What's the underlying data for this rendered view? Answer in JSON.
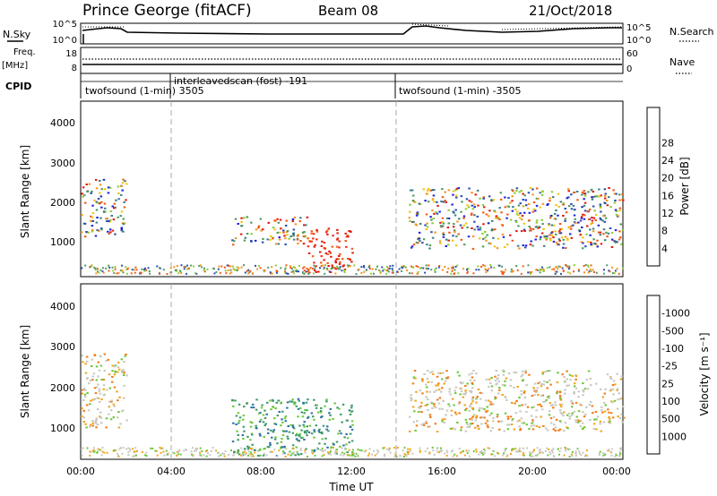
{
  "header": {
    "station": "Prince George (fitACF)",
    "beam": "Beam 08",
    "date": "21/Oct/2018"
  },
  "left_labels": {
    "nsky": "N.Sky",
    "freq": "Freq.",
    "mhz": "[MHz]",
    "cpid": "CPID"
  },
  "right_labels": {
    "nsearch": "N.Search",
    "nave": "Nave"
  },
  "noise_panel": {
    "ticks_left": [
      "10^5",
      "10^0"
    ],
    "ticks_right": [
      "10^5",
      "10^0"
    ]
  },
  "freq_panel": {
    "ticks_left": [
      "18",
      "8"
    ],
    "ticks_right": [
      "60",
      "0"
    ]
  },
  "cpid_segments": [
    {
      "label": "twofsound (1-min) 3505"
    },
    {
      "label": "interleavedscan (fost) -191"
    },
    {
      "label": "twofsound (1-min) -3505"
    }
  ],
  "chart_data": [
    {
      "type": "heatmap",
      "title": "",
      "xlabel": "",
      "ylabel": "Slant Range [km]",
      "ylim": [
        200,
        4500
      ],
      "yticks": [
        "1000",
        "2000",
        "3000",
        "4000"
      ],
      "xlim": [
        "00:00",
        "24:00"
      ],
      "colorbar": {
        "label": "Power [dB]",
        "ticks": [
          "4",
          "8",
          "12",
          "16",
          "20",
          "24",
          "28"
        ],
        "colors": [
          "#1f22d8",
          "#2a4fae",
          "#3c7f84",
          "#4f9a5e",
          "#8bcd35",
          "#f2c40c",
          "#f59320",
          "#ef5a14",
          "#e01a0f"
        ]
      },
      "series": [
        {
          "x": [
            "00:00",
            "02:00"
          ],
          "y": [
            1200,
            2600
          ],
          "level": "mixed"
        },
        {
          "x": [
            "06:40",
            "10:00"
          ],
          "y": [
            1000,
            1700
          ],
          "level": "mixed"
        },
        {
          "x": [
            "10:00",
            "12:00"
          ],
          "y": [
            300,
            1400
          ],
          "level": "high"
        },
        {
          "x": [
            "14:30",
            "24:00"
          ],
          "y": [
            900,
            2400
          ],
          "level": "mixed"
        }
      ]
    },
    {
      "type": "heatmap",
      "title": "",
      "xlabel": "Time UT",
      "ylabel": "Slant Range [km]",
      "ylim": [
        200,
        4500
      ],
      "yticks": [
        "1000",
        "2000",
        "3000",
        "4000"
      ],
      "xlim": [
        "00:00",
        "24:00"
      ],
      "colorbar": {
        "label": "Velocity [m s⁻¹]",
        "ticks": [
          "1000",
          "500",
          "100",
          "25",
          "-25",
          "-100",
          "-500",
          "-1000"
        ],
        "colors": [
          "#2b3ec6",
          "#2f6fa8",
          "#3c9a6a",
          "#6cc83a",
          "#c8c8c0",
          "#c8c8c0",
          "#f3a418",
          "#f37a1a",
          "#ea2a12"
        ]
      },
      "xticks": [
        "00:00",
        "04:00",
        "08:00",
        "12:00",
        "16:00",
        "20:00",
        "00:00"
      ],
      "series": [
        {
          "x": [
            "00:00",
            "02:00"
          ],
          "y": [
            1000,
            2800
          ],
          "level": "low"
        },
        {
          "x": [
            "06:40",
            "12:00"
          ],
          "y": [
            300,
            1700
          ],
          "level": "positive"
        },
        {
          "x": [
            "14:30",
            "24:00"
          ],
          "y": [
            900,
            2400
          ],
          "level": "low"
        }
      ]
    }
  ]
}
